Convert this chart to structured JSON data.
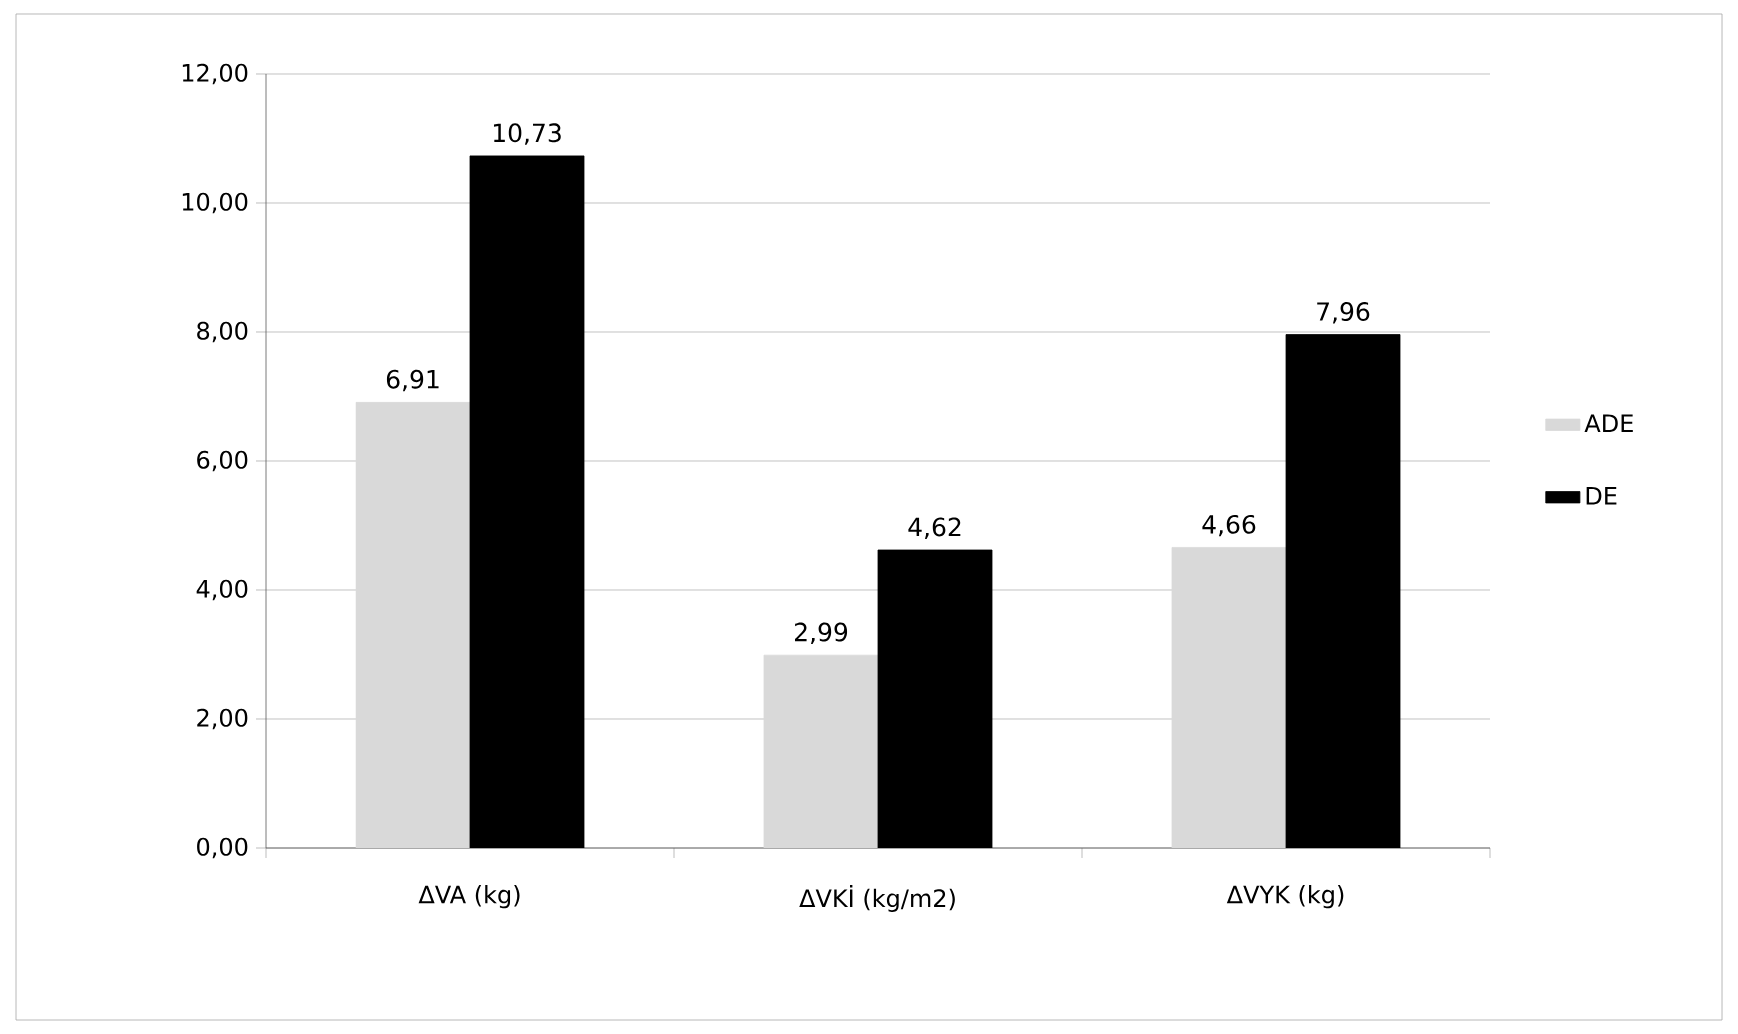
{
  "chart_data": {
    "type": "bar",
    "categories": [
      "ΔVA (kg)",
      "ΔVKİ (kg/m2)",
      "ΔVYK (kg)"
    ],
    "series": [
      {
        "name": "ADE",
        "color": "#d9d9d9",
        "values": [
          6.91,
          2.99,
          4.66
        ],
        "value_labels": [
          "6,91",
          "2,99",
          "4,66"
        ]
      },
      {
        "name": "DE",
        "color": "#000000",
        "values": [
          10.73,
          4.62,
          7.96
        ],
        "value_labels": [
          "10,73",
          "4,62",
          "7,96"
        ]
      }
    ],
    "ylim": [
      0,
      12
    ],
    "yticks": [
      {
        "value": 0,
        "label": "0,00"
      },
      {
        "value": 2,
        "label": "2,00"
      },
      {
        "value": 4,
        "label": "4,00"
      },
      {
        "value": 6,
        "label": "6,00"
      },
      {
        "value": 8,
        "label": "8,00"
      },
      {
        "value": 10,
        "label": "10,00"
      },
      {
        "value": 12,
        "label": "12,00"
      }
    ],
    "grid": "y",
    "legend": "right"
  }
}
